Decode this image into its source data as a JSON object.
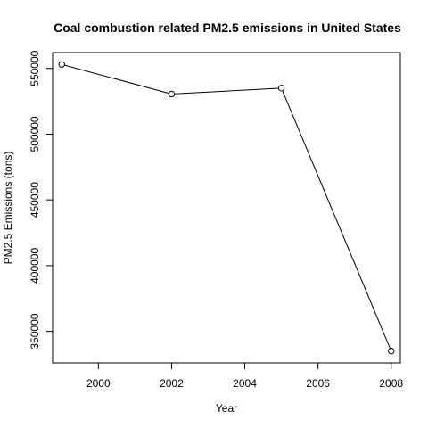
{
  "chart_data": {
    "type": "line",
    "title": "Coal combustion related PM2.5 emissions in United States",
    "xlabel": "Year",
    "ylabel": "PM2.5 Emissions (tons)",
    "x": [
      1999,
      2002,
      2005,
      2008
    ],
    "y": [
      553000,
      530500,
      535000,
      335000
    ],
    "xlim": [
      1998.75,
      2008.25
    ],
    "ylim": [
      326000,
      562000
    ],
    "x_ticks": [
      "2000",
      "2002",
      "2004",
      "2006",
      "2008"
    ],
    "y_ticks": [
      "350000",
      "400000",
      "450000",
      "500000",
      "550000"
    ],
    "marker": "open-circle",
    "line_color": "#000000",
    "grid": false
  }
}
